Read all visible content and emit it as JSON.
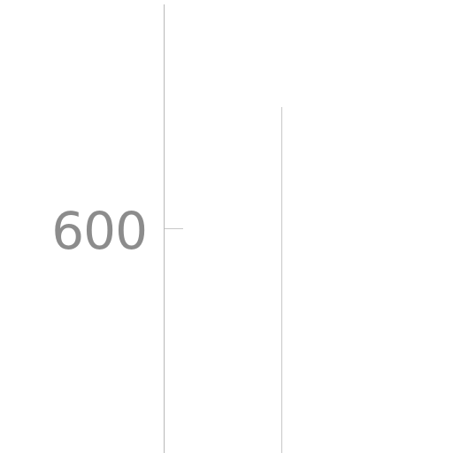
{
  "axis": {
    "tick_label": "600"
  },
  "colors": {
    "background": "#ffffff",
    "axis_line": "#b8b8b8",
    "tick_label": "#8c8c8c",
    "guide_line": "#c8c8c8"
  }
}
